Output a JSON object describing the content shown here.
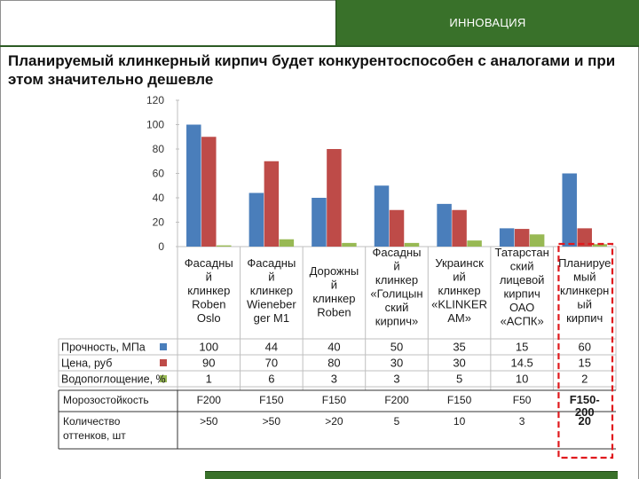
{
  "banner": {
    "label": "ИННОВАЦИЯ"
  },
  "slide": {
    "title": "Планируемый клинкерный кирпич будет конкурентоспособен с аналогами и при этом значительно дешевле"
  },
  "colors": {
    "banner": "#39712a",
    "series1": "#4a7ebb",
    "series2": "#be4b48",
    "series3": "#98b954",
    "highlight": "#e0191d"
  },
  "chart_data": {
    "type": "bar",
    "ylim": [
      0,
      120
    ],
    "yticks": [
      "0",
      "20",
      "40",
      "60",
      "80",
      "100",
      "120"
    ],
    "grid": false,
    "categories": [
      [
        "Фасадны",
        "й",
        "клинкер",
        "Roben",
        "Oslo"
      ],
      [
        "Фасадны",
        "й",
        "клинкер",
        "Wieneber",
        "ger M1"
      ],
      [
        "Дорожны",
        "й",
        "клинкер",
        "Roben"
      ],
      [
        "Фасадны",
        "й",
        "клинкер",
        "«Голицын",
        "ский",
        "кирпич»"
      ],
      [
        "Украинск",
        "ий",
        "клинкер",
        "«KLINKER",
        "AM»"
      ],
      [
        "Татарстан",
        "ский",
        "лицевой",
        "кирпич",
        "ОАО",
        "«АСПК»"
      ],
      [
        "Планируе",
        "мый",
        "клинкерн",
        "ый",
        "кирпич"
      ]
    ],
    "series": [
      {
        "name": "Прочность, МПа",
        "values": [
          100,
          44,
          40,
          50,
          35,
          15,
          60
        ]
      },
      {
        "name": "Цена, руб",
        "values": [
          90,
          70,
          80,
          30,
          30,
          14.5,
          15
        ]
      },
      {
        "name": "Водопоглощение, %",
        "values": [
          1,
          6,
          3,
          3,
          5,
          10,
          2
        ]
      }
    ],
    "table_series_values": [
      [
        "100",
        "44",
        "40",
        "50",
        "35",
        "15",
        "60"
      ],
      [
        "90",
        "70",
        "80",
        "30",
        "30",
        "14.5",
        "15"
      ],
      [
        "1",
        "6",
        "3",
        "3",
        "5",
        "10",
        "2"
      ]
    ],
    "extra_rows": [
      {
        "label": "Морозостойкость",
        "values": [
          "F200",
          "F150",
          "F150",
          "F200",
          "F150",
          "F50",
          "F150-\n200"
        ]
      },
      {
        "label": "Количество\nоттенков, шт",
        "values": [
          ">50",
          ">50",
          ">20",
          "5",
          "10",
          "3",
          "20"
        ]
      }
    ],
    "highlighted_category_index": 6
  }
}
